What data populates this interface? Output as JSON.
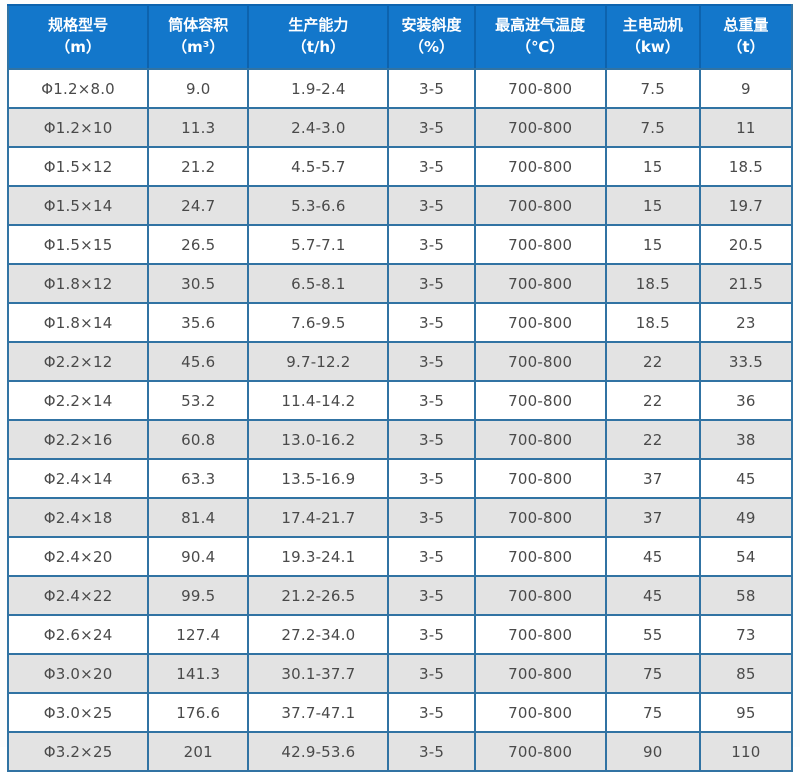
{
  "colors": {
    "header_bg": "#1377cb",
    "header_divider": "#0d63ae",
    "grid_border": "#3173a3",
    "row_alt_bg": "#e3e3e3",
    "row_bg": "#ffffff",
    "header_text": "#ffffff",
    "cell_text": "#4a4a4a"
  },
  "table": {
    "columns": [
      {
        "title": "规格型号",
        "unit": "（m）"
      },
      {
        "title": "筒体容积",
        "unit": "（m³）"
      },
      {
        "title": "生产能力",
        "unit": "（t/h）"
      },
      {
        "title": "安装斜度",
        "unit": "（%）"
      },
      {
        "title": "最高进气温度",
        "unit": "（℃）"
      },
      {
        "title": "主电动机",
        "unit": "（kw）"
      },
      {
        "title": "总重量",
        "unit": "（t）"
      }
    ],
    "rows": [
      [
        "Φ1.2×8.0",
        "9.0",
        "1.9-2.4",
        "3-5",
        "700-800",
        "7.5",
        "9"
      ],
      [
        "Φ1.2×10",
        "11.3",
        "2.4-3.0",
        "3-5",
        "700-800",
        "7.5",
        "11"
      ],
      [
        "Φ1.5×12",
        "21.2",
        "4.5-5.7",
        "3-5",
        "700-800",
        "15",
        "18.5"
      ],
      [
        "Φ1.5×14",
        "24.7",
        "5.3-6.6",
        "3-5",
        "700-800",
        "15",
        "19.7"
      ],
      [
        "Φ1.5×15",
        "26.5",
        "5.7-7.1",
        "3-5",
        "700-800",
        "15",
        "20.5"
      ],
      [
        "Φ1.8×12",
        "30.5",
        "6.5-8.1",
        "3-5",
        "700-800",
        "18.5",
        "21.5"
      ],
      [
        "Φ1.8×14",
        "35.6",
        "7.6-9.5",
        "3-5",
        "700-800",
        "18.5",
        "23"
      ],
      [
        "Φ2.2×12",
        "45.6",
        "9.7-12.2",
        "3-5",
        "700-800",
        "22",
        "33.5"
      ],
      [
        "Φ2.2×14",
        "53.2",
        "11.4-14.2",
        "3-5",
        "700-800",
        "22",
        "36"
      ],
      [
        "Φ2.2×16",
        "60.8",
        "13.0-16.2",
        "3-5",
        "700-800",
        "22",
        "38"
      ],
      [
        "Φ2.4×14",
        "63.3",
        "13.5-16.9",
        "3-5",
        "700-800",
        "37",
        "45"
      ],
      [
        "Φ2.4×18",
        "81.4",
        "17.4-21.7",
        "3-5",
        "700-800",
        "37",
        "49"
      ],
      [
        "Φ2.4×20",
        "90.4",
        "19.3-24.1",
        "3-5",
        "700-800",
        "45",
        "54"
      ],
      [
        "Φ2.4×22",
        "99.5",
        "21.2-26.5",
        "3-5",
        "700-800",
        "45",
        "58"
      ],
      [
        "Φ2.6×24",
        "127.4",
        "27.2-34.0",
        "3-5",
        "700-800",
        "55",
        "73"
      ],
      [
        "Φ3.0×20",
        "141.3",
        "30.1-37.7",
        "3-5",
        "700-800",
        "75",
        "85"
      ],
      [
        "Φ3.0×25",
        "176.6",
        "37.7-47.1",
        "3-5",
        "700-800",
        "75",
        "95"
      ],
      [
        "Φ3.2×25",
        "201",
        "42.9-53.6",
        "3-5",
        "700-800",
        "90",
        "110"
      ]
    ]
  }
}
